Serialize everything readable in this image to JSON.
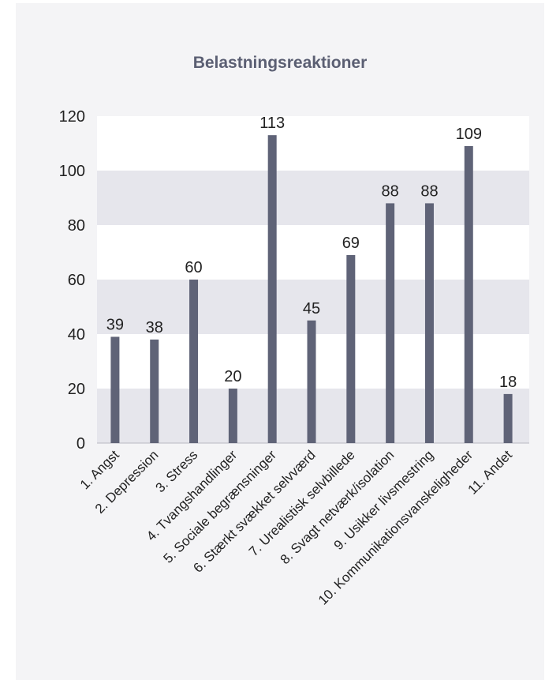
{
  "chart_data": {
    "type": "bar",
    "title": "Belastningsreaktioner",
    "xlabel": "",
    "ylabel": "",
    "categories": [
      "1. Angst",
      "2. Depression",
      "3. Stress",
      "4. Tvangshandlinger",
      "5. Sociale begrænsninger",
      "6. Stærkt svækket selvværd",
      "7. Urealistisk  selvbillede",
      "8. Svagt netværk/isolation",
      "9. Usikker livsmestring",
      "10. Kommunikationsvanskeligheder",
      "11. Andet"
    ],
    "values": [
      39,
      38,
      60,
      20,
      113,
      45,
      69,
      88,
      88,
      109,
      18
    ],
    "ylim": [
      0,
      120
    ],
    "yticks": [
      0,
      20,
      40,
      60,
      80,
      100,
      120
    ],
    "grid": "alternating horizontal bands",
    "legend": "none",
    "colors": {
      "bar": "#5f6377",
      "band_dark": "#e6e6ec",
      "band_light": "#ffffff",
      "title": "#5b5f73",
      "background": "#f4f4f6"
    }
  }
}
